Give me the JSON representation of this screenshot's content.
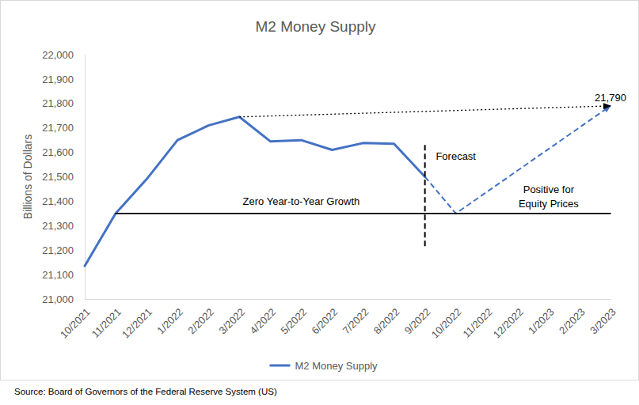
{
  "chart_data": {
    "type": "line",
    "title": "M2 Money Supply",
    "y_label": "Billions of Dollars",
    "source": "Source: Board of Governors of the Federal Reserve System (US)",
    "categories": [
      "10/2021",
      "11/2021",
      "12/2021",
      "1/2022",
      "2/2022",
      "3/2022",
      "4/2022",
      "5/2022",
      "6/2022",
      "7/2022",
      "8/2022",
      "9/2022",
      "10/2022",
      "11/2022",
      "12/2022",
      "1/2023",
      "2/2023",
      "3/2023"
    ],
    "ylim": [
      21000,
      22000
    ],
    "yticks": [
      {
        "value": 21000,
        "label": "21,000"
      },
      {
        "value": 21100,
        "label": "21,100"
      },
      {
        "value": 21200,
        "label": "21,200"
      },
      {
        "value": 21300,
        "label": "21,300"
      },
      {
        "value": 21400,
        "label": "21,400"
      },
      {
        "value": 21500,
        "label": "21,500"
      },
      {
        "value": 21600,
        "label": "21,600"
      },
      {
        "value": 21700,
        "label": "21,700"
      },
      {
        "value": 21800,
        "label": "21,800"
      },
      {
        "value": 21900,
        "label": "21,900"
      },
      {
        "value": 22000,
        "label": "22,000"
      }
    ],
    "grid": false,
    "legend": "bottom",
    "series": [
      {
        "name": "M2 Money Supply",
        "color": "#4472c4",
        "line_style": "solid",
        "values": [
          21135,
          21350,
          21490,
          21650,
          21710,
          21745,
          21645,
          21650,
          21610,
          21638,
          21635,
          21500,
          null,
          null,
          null,
          null,
          null,
          null
        ]
      },
      {
        "color": "#4472c4",
        "line_style": "dashed",
        "marker": "arrow",
        "x": [
          "9/2022",
          "10/2022",
          "3/2023"
        ],
        "values": [
          21500,
          21350,
          21790
        ]
      },
      {
        "color": "#000000",
        "line_style": "dotted",
        "marker": "arrow",
        "x": [
          "3/2022",
          "3/2023"
        ],
        "values": [
          21745,
          21790
        ]
      },
      {
        "color": "#000000",
        "line_style": "solid",
        "x": [
          "11/2021",
          "3/2023"
        ],
        "values": [
          21350,
          21350
        ]
      },
      {
        "color": "#000000",
        "line_style": "dashed",
        "x": [
          "9/2022",
          "9/2022"
        ],
        "values": [
          21630,
          21210
        ]
      }
    ],
    "annotations": [
      {
        "text": "21,790",
        "x": "3/2023",
        "y": 21790
      },
      {
        "text": "Forecast",
        "x": "10/2022",
        "y": 21550
      },
      {
        "text": "Zero Year-to-Year Growth",
        "x": "5/2022",
        "y": 21366
      },
      {
        "text": "Positive for",
        "x": "1/2023",
        "y": 21414
      },
      {
        "text": "Equity Prices",
        "x": "1/2023",
        "y": 21356
      }
    ]
  }
}
